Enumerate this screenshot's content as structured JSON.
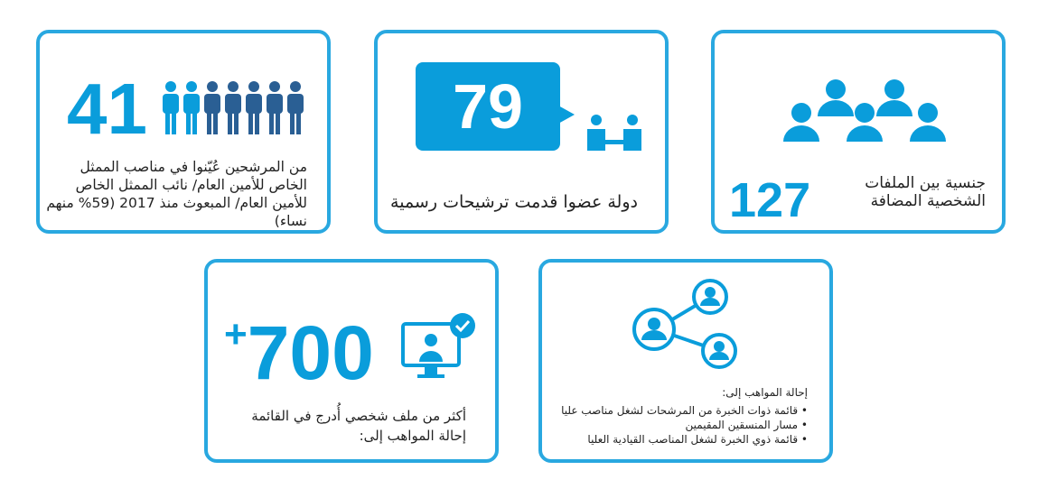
{
  "colors": {
    "accent": "#0a9ddb",
    "border": "#29a8e0",
    "dark_person": "#2a5f94"
  },
  "cards": [
    {
      "id": "envoys",
      "number": "41",
      "text": "من المرشحين عُيّنوا في مناصب الممثل الخاص للأمين العام/ نائب الممثل الخاص للأمين العام/ المبعوث منذ 2017 (59% منهم نساء)",
      "icon": "people-row-icon"
    },
    {
      "id": "member-states",
      "number": "79",
      "text": "دولة عضوا قدمت ترشيحات رسمية",
      "icon": "speech-bubble-people-icon"
    },
    {
      "id": "nationalities",
      "number": "127",
      "text": "جنسية بين الملفات الشخصية المضافة",
      "icon": "group-icon"
    },
    {
      "id": "profiles",
      "number": "+700",
      "text_lines": [
        "أكثر من ملف شخصي أُدرج في القائمة",
        "إحالة المواهب إلى:"
      ],
      "icon": "monitor-check-icon"
    },
    {
      "id": "referral",
      "heading": "إحالة المواهب إلى:",
      "bullets": [
        "قائمة ذوات الخبرة من المرشحات لشغل مناصب عليا",
        "مسار المنسقين المقيمين",
        "قائمة ذوي الخبرة لشغل المناصب القيادية العليا"
      ],
      "icon": "network-people-icon"
    }
  ]
}
